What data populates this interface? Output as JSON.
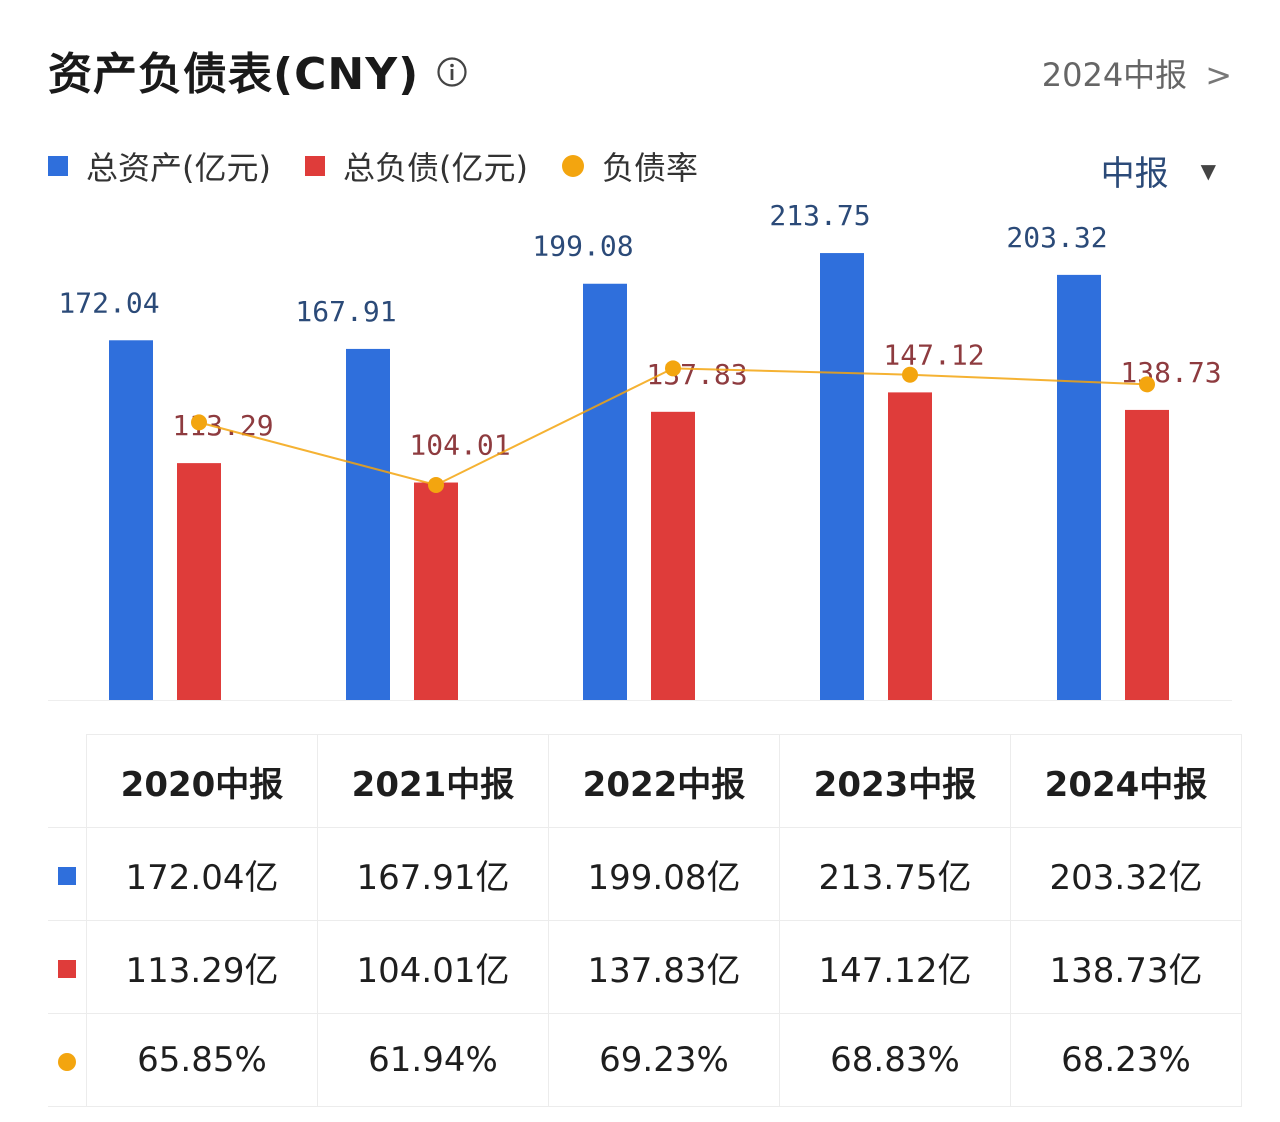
{
  "header": {
    "title": "资产负债表(CNY)",
    "period_link": "2024中报",
    "chevron": ">"
  },
  "legend": [
    {
      "label": "总资产(亿元)",
      "color": "#2f6fdc",
      "shape": "square"
    },
    {
      "label": "总负债(亿元)",
      "color": "#df3c3a",
      "shape": "square"
    },
    {
      "label": "负债率",
      "color": "#f3a50f",
      "shape": "dot"
    }
  ],
  "dropdown": {
    "label": "中报",
    "caret": "▼"
  },
  "colors": {
    "assets": "#2f6fdc",
    "liabilities": "#df3c3a",
    "ratio": "#f3a50f",
    "asset_label": "#2b4a78",
    "liability_label": "#8e3b3f"
  },
  "chart_data": {
    "type": "bar",
    "categories": [
      "2020中报",
      "2021中报",
      "2022中报",
      "2023中报",
      "2024中报"
    ],
    "series": [
      {
        "name": "总资产(亿元)",
        "values": [
          172.04,
          167.91,
          199.08,
          213.75,
          203.32
        ],
        "labels": [
          "172.04",
          "167.91",
          "199.08",
          "213.75",
          "203.32"
        ]
      },
      {
        "name": "总负债(亿元)",
        "values": [
          113.29,
          104.01,
          137.83,
          147.12,
          138.73
        ],
        "labels": [
          "113.29",
          "104.01",
          "137.83",
          "147.12",
          "138.73"
        ]
      },
      {
        "name": "负债率",
        "type": "line",
        "values": [
          65.85,
          61.94,
          69.23,
          68.83,
          68.23
        ]
      }
    ],
    "title": "资产负债表(CNY)",
    "ylim": [
      0,
      220
    ],
    "ratio_ylim": [
      56,
      71
    ]
  },
  "table": {
    "headers": [
      "2020中报",
      "2021中报",
      "2022中报",
      "2023中报",
      "2024中报"
    ],
    "rows": [
      {
        "marker": "square",
        "color": "#2f6fdc",
        "cells": [
          "172.04亿",
          "167.91亿",
          "199.08亿",
          "213.75亿",
          "203.32亿"
        ]
      },
      {
        "marker": "square",
        "color": "#df3c3a",
        "cells": [
          "113.29亿",
          "104.01亿",
          "137.83亿",
          "147.12亿",
          "138.73亿"
        ]
      },
      {
        "marker": "dot",
        "color": "#f3a50f",
        "cells": [
          "65.85%",
          "61.94%",
          "69.23%",
          "68.83%",
          "68.23%"
        ]
      }
    ]
  }
}
